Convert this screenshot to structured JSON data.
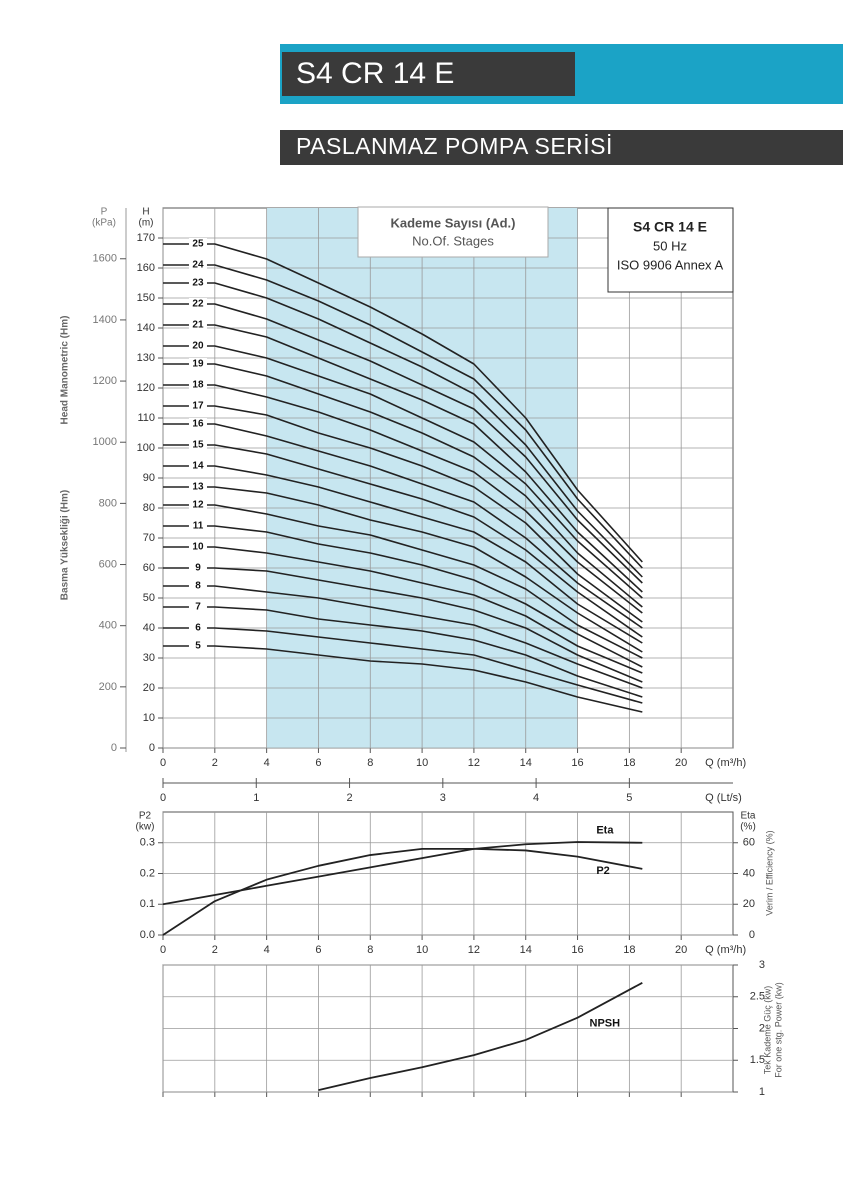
{
  "header": {
    "title": "S4 CR 14 E",
    "subtitle": "PASLANMAZ POMPA SERİSİ"
  },
  "chart_data": [
    {
      "type": "line",
      "x": [
        0,
        2,
        4,
        6,
        8,
        10,
        12,
        14,
        16,
        18.5
      ],
      "xlim": [
        0,
        22
      ],
      "xticks": [
        0,
        2,
        4,
        6,
        8,
        10,
        12,
        14,
        16,
        18,
        20
      ],
      "x_label": "Q (m³/h)",
      "x2lim": [
        0,
        6.111
      ],
      "x2ticks": [
        0,
        1,
        2,
        3,
        4,
        5
      ],
      "x2_label": "Q (Lt/s)",
      "ylim": [
        0,
        180
      ],
      "yticks": [
        0,
        10,
        20,
        30,
        40,
        50,
        60,
        70,
        80,
        90,
        100,
        110,
        120,
        130,
        140,
        150,
        160,
        170
      ],
      "y_label": "H",
      "y_unit": "(m)",
      "y2lim": [
        0,
        1766
      ],
      "y2ticks": [
        0,
        200,
        400,
        600,
        800,
        1000,
        1200,
        1400,
        1600
      ],
      "y2_label": "P",
      "y2_unit": "(kPa)",
      "y_titles": [
        "Head Manometric (Hm)",
        "Basma Yüksekliği (Hm)"
      ],
      "shaded_range": [
        4,
        16
      ],
      "legend_title": "Kademe Sayısı (Ad.)",
      "legend_subtitle": "No.Of. Stages",
      "info": [
        "S4 CR 14 E",
        "50 Hz",
        "ISO 9906 Annex A"
      ],
      "grid": true,
      "series": [
        {
          "name": "5",
          "color": "#222222",
          "values": [
            34,
            34,
            33,
            31,
            29,
            28,
            26,
            22,
            17,
            12
          ]
        },
        {
          "name": "6",
          "color": "#222222",
          "values": [
            40,
            40,
            39,
            37,
            35,
            33,
            31,
            26,
            21,
            15
          ]
        },
        {
          "name": "7",
          "color": "#222222",
          "values": [
            47,
            47,
            46,
            43,
            41,
            39,
            36,
            31,
            24,
            17
          ]
        },
        {
          "name": "8",
          "color": "#222222",
          "values": [
            54,
            54,
            52,
            50,
            47,
            44,
            41,
            35,
            28,
            20
          ]
        },
        {
          "name": "9",
          "color": "#222222",
          "values": [
            60,
            60,
            59,
            56,
            53,
            50,
            46,
            40,
            31,
            22
          ]
        },
        {
          "name": "10",
          "color": "#222222",
          "values": [
            67,
            67,
            65,
            62,
            59,
            55,
            51,
            44,
            34,
            25
          ]
        },
        {
          "name": "11",
          "color": "#222222",
          "values": [
            74,
            74,
            72,
            68,
            65,
            61,
            56,
            48,
            38,
            27
          ]
        },
        {
          "name": "12",
          "color": "#222222",
          "values": [
            81,
            81,
            78,
            74,
            71,
            66,
            61,
            53,
            41,
            30
          ]
        },
        {
          "name": "13",
          "color": "#222222",
          "values": [
            87,
            87,
            85,
            81,
            76,
            72,
            67,
            57,
            45,
            32
          ]
        },
        {
          "name": "14",
          "color": "#222222",
          "values": [
            94,
            94,
            91,
            87,
            82,
            77,
            72,
            62,
            48,
            35
          ]
        },
        {
          "name": "15",
          "color": "#222222",
          "values": [
            101,
            101,
            98,
            93,
            88,
            83,
            77,
            66,
            52,
            37
          ]
        },
        {
          "name": "16",
          "color": "#222222",
          "values": [
            108,
            108,
            104,
            99,
            94,
            88,
            82,
            70,
            55,
            40
          ]
        },
        {
          "name": "17",
          "color": "#222222",
          "values": [
            114,
            114,
            111,
            105,
            100,
            94,
            87,
            75,
            58,
            42
          ]
        },
        {
          "name": "18",
          "color": "#222222",
          "values": [
            121,
            121,
            117,
            112,
            106,
            99,
            92,
            79,
            62,
            45
          ]
        },
        {
          "name": "19",
          "color": "#222222",
          "values": [
            128,
            128,
            124,
            118,
            112,
            105,
            97,
            84,
            65,
            47
          ]
        },
        {
          "name": "20",
          "color": "#222222",
          "values": [
            134,
            134,
            130,
            124,
            118,
            110,
            102,
            88,
            69,
            50
          ]
        },
        {
          "name": "21",
          "color": "#222222",
          "values": [
            141,
            141,
            137,
            130,
            123,
            116,
            108,
            92,
            72,
            52
          ]
        },
        {
          "name": "22",
          "color": "#222222",
          "values": [
            148,
            148,
            143,
            136,
            129,
            121,
            113,
            97,
            76,
            55
          ]
        },
        {
          "name": "23",
          "color": "#222222",
          "values": [
            155,
            155,
            150,
            143,
            135,
            127,
            118,
            101,
            79,
            57
          ]
        },
        {
          "name": "24",
          "color": "#222222",
          "values": [
            161,
            161,
            156,
            149,
            141,
            132,
            123,
            106,
            83,
            60
          ]
        },
        {
          "name": "25",
          "color": "#222222",
          "values": [
            168,
            168,
            163,
            155,
            147,
            138,
            128,
            110,
            86,
            62
          ]
        }
      ]
    },
    {
      "type": "line",
      "x": [
        0,
        2,
        4,
        6,
        8,
        10,
        12,
        14,
        16,
        18.5
      ],
      "xlim": [
        0,
        22
      ],
      "xticks": [
        0,
        2,
        4,
        6,
        8,
        10,
        12,
        14,
        16,
        18,
        20
      ],
      "x_label": "Q (m³/h)",
      "ylim": [
        0,
        0.4
      ],
      "yticks": [
        {
          "value": 0,
          "label": "0.0"
        },
        0.1,
        0.2,
        0.3
      ],
      "y_label": "P2",
      "y_unit": "(kw)",
      "y2lim": [
        0,
        80
      ],
      "y2ticks": [
        0,
        20,
        40,
        60
      ],
      "y2_label": "Eta",
      "y2_unit": "(%)",
      "y2_title": "Verim / Efficiency (%)",
      "grid": true,
      "series": [
        {
          "name": "Eta",
          "color": "#222222",
          "axis": "y2",
          "values": [
            20,
            26,
            32,
            38,
            44,
            50,
            56,
            59,
            60.5,
            60
          ]
        },
        {
          "name": "P2",
          "color": "#222222",
          "values": [
            0,
            0.11,
            0.18,
            0.225,
            0.26,
            0.28,
            0.28,
            0.275,
            0.255,
            0.215
          ]
        }
      ]
    },
    {
      "type": "line",
      "x": [
        6,
        8,
        10,
        12,
        14,
        16,
        18.5
      ],
      "xlim": [
        0,
        22
      ],
      "xticks": [
        0,
        2,
        4,
        6,
        8,
        10,
        12,
        14,
        16,
        18,
        20
      ],
      "show_xtick_labels": false,
      "ylim": [
        1,
        3
      ],
      "yticks": [
        1,
        1.5,
        2,
        2.5,
        3
      ],
      "y_titles": [
        "Tek Kademe Güç (kw)",
        "For one stg. Power (kw)"
      ],
      "grid": true,
      "series": [
        {
          "name": "NPSH",
          "color": "#222222",
          "values": [
            1.03,
            1.22,
            1.39,
            1.58,
            1.82,
            2.17,
            2.72
          ]
        }
      ]
    }
  ]
}
